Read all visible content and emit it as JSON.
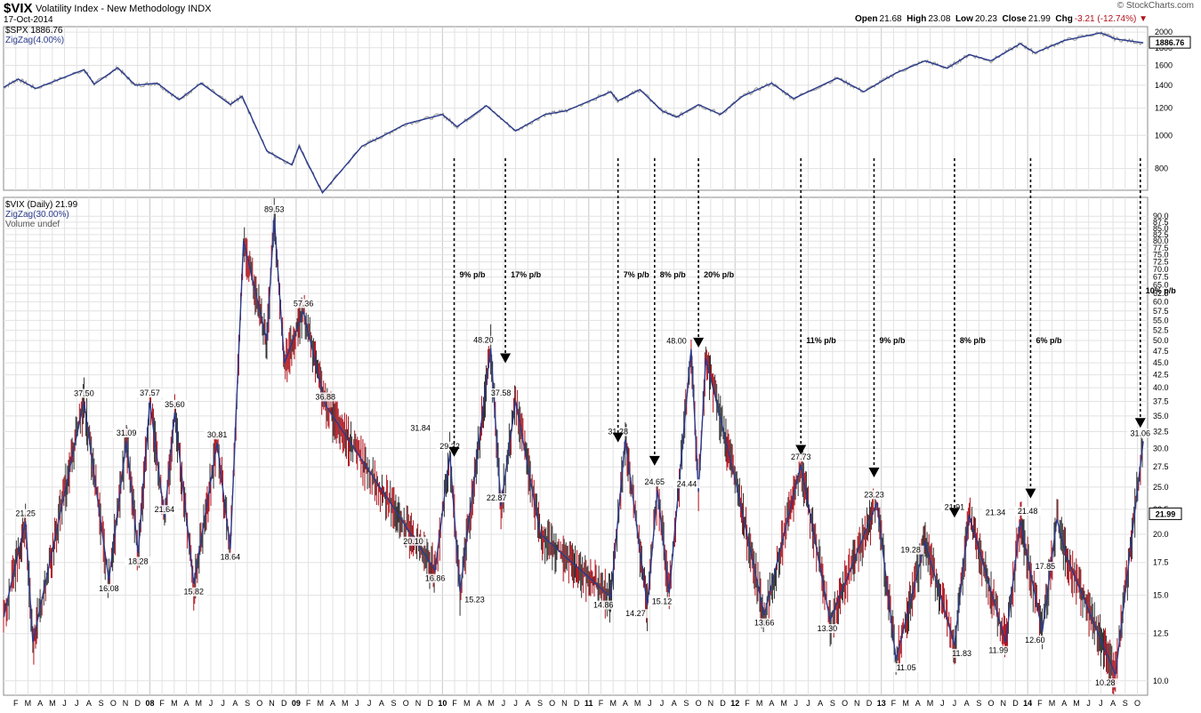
{
  "header": {
    "symbol": "$VIX",
    "name": "Volatility Index - New Methodology",
    "exchange": "INDX",
    "date": "17-Oct-2014",
    "brand": "© StockCharts.com",
    "quote": {
      "open_label": "Open",
      "open": "21.68",
      "high_label": "High",
      "high": "23.08",
      "low_label": "Low",
      "low": "20.23",
      "close_label": "Close",
      "close": "21.99",
      "chg_label": "Chg",
      "chg": "-3.21 (-12.74%)"
    }
  },
  "top_panel": {
    "legend_title": "$SPX 1886.76",
    "legend_zigzag": "ZigZag(4.00%)",
    "last_value": "1886.76"
  },
  "bottom_panel": {
    "legend_title": "$VIX (Daily) 21.99",
    "legend_zigzag": "ZigZag(30.00%)",
    "legend_volume": "Volume undef",
    "last_value": "21.99"
  },
  "colors": {
    "zigzag": "#2a3a8c",
    "price": "#333333",
    "down_bar": "#b0121b",
    "grid": "#e2e2e2"
  },
  "chart_data": [
    {
      "type": "line",
      "title": "$SPX 1886.76",
      "ylim": [
        700,
        2050
      ],
      "yscale": "log",
      "yticks": [
        800,
        1000,
        1200,
        1400,
        1600,
        1800,
        2000
      ],
      "series": [
        {
          "name": "ZigZag(4.00%)",
          "x": [
            2007.0,
            2007.1,
            2007.22,
            2007.55,
            2007.62,
            2007.78,
            2007.9,
            2008.05,
            2008.2,
            2008.35,
            2008.55,
            2008.63,
            2008.8,
            2008.97,
            2009.02,
            2009.18,
            2009.45,
            2009.6,
            2009.75,
            2010.0,
            2010.1,
            2010.3,
            2010.5,
            2010.7,
            2010.85,
            2011.15,
            2011.2,
            2011.35,
            2011.5,
            2011.6,
            2011.75,
            2011.9,
            2012.05,
            2012.25,
            2012.4,
            2012.7,
            2012.88,
            2013.1,
            2013.3,
            2013.45,
            2013.6,
            2013.75,
            2013.95,
            2014.05,
            2014.25,
            2014.5,
            2014.6,
            2014.79
          ],
          "y": [
            1380,
            1460,
            1370,
            1555,
            1410,
            1575,
            1400,
            1420,
            1270,
            1420,
            1230,
            1300,
            900,
            820,
            930,
            680,
            930,
            1000,
            1080,
            1150,
            1060,
            1220,
            1030,
            1150,
            1180,
            1340,
            1260,
            1360,
            1180,
            1130,
            1230,
            1150,
            1300,
            1420,
            1280,
            1470,
            1340,
            1520,
            1650,
            1570,
            1720,
            1650,
            1850,
            1740,
            1890,
            1990,
            1910,
            1862
          ]
        }
      ]
    },
    {
      "type": "line",
      "title": "$VIX (Daily) 21.99",
      "ylim": [
        9.5,
        92
      ],
      "yscale": "log",
      "yticks": [
        10.0,
        12.5,
        15.0,
        17.5,
        20.0,
        22.5,
        25.0,
        27.5,
        30.0,
        32.5,
        35.0,
        37.5,
        40.0,
        42.5,
        45.0,
        47.5,
        50.0,
        52.5,
        55.0,
        57.5,
        60.0,
        62.5,
        65.0,
        67.5,
        70.0,
        72.5,
        75.0,
        77.5,
        80.0,
        82.5,
        85.0,
        87.5,
        90.0
      ],
      "xlabels": [
        "F",
        "M",
        "A",
        "M",
        "J",
        "J",
        "A",
        "S",
        "O",
        "N",
        "D",
        "08",
        "F",
        "M",
        "A",
        "M",
        "J",
        "J",
        "A",
        "S",
        "O",
        "N",
        "D",
        "09",
        "F",
        "M",
        "A",
        "M",
        "J",
        "J",
        "A",
        "S",
        "O",
        "N",
        "D",
        "10",
        "F",
        "M",
        "A",
        "M",
        "J",
        "J",
        "A",
        "S",
        "O",
        "N",
        "D",
        "11",
        "F",
        "M",
        "A",
        "M",
        "J",
        "J",
        "A",
        "S",
        "O",
        "N",
        "D",
        "12",
        "F",
        "M",
        "A",
        "M",
        "J",
        "J",
        "A",
        "S",
        "O",
        "N",
        "D",
        "13",
        "F",
        "M",
        "A",
        "M",
        "J",
        "J",
        "A",
        "S",
        "O",
        "N",
        "D",
        "14",
        "F",
        "M",
        "A",
        "M",
        "J",
        "J",
        "A",
        "S",
        "O"
      ],
      "series": [
        {
          "name": "ZigZag(30.00%)",
          "x": [
            2007.0,
            2007.15,
            2007.2,
            2007.55,
            2007.72,
            2007.84,
            2007.92,
            2008.0,
            2008.1,
            2008.17,
            2008.3,
            2008.46,
            2008.55,
            2008.64,
            2008.8,
            2008.85,
            2008.92,
            2009.05,
            2009.2,
            2009.95,
            2010.05,
            2010.12,
            2010.33,
            2010.4,
            2010.5,
            2010.67,
            2011.15,
            2011.25,
            2011.4,
            2011.47,
            2011.55,
            2011.7,
            2011.75,
            2011.8,
            2012.0,
            2012.2,
            2012.45,
            2012.65,
            2012.97,
            2013.1,
            2013.3,
            2013.5,
            2013.6,
            2013.85,
            2013.95,
            2014.1,
            2014.2,
            2014.27,
            2014.6,
            2014.79
          ],
          "y": [
            13.5,
            21.25,
            12.0,
            37.5,
            16.08,
            31.09,
            18.28,
            37.57,
            21.64,
            35.6,
            15.82,
            30.81,
            18.64,
            80.0,
            50.0,
            89.53,
            45.0,
            57.36,
            36.88,
            16.86,
            29.22,
            15.23,
            48.2,
            22.87,
            37.58,
            20.0,
            14.86,
            31.28,
            14.27,
            24.65,
            15.12,
            48.0,
            24.44,
            46.0,
            26.0,
            13.66,
            27.73,
            13.3,
            23.23,
            11.05,
            19.28,
            11.83,
            21.91,
            11.99,
            21.34,
            12.6,
            21.48,
            17.85,
            10.28,
            31.06
          ]
        }
      ],
      "point_labels": [
        {
          "x": 2007.15,
          "y": 21.25,
          "text": "21.25"
        },
        {
          "x": 2007.55,
          "y": 37.5,
          "text": "37.50"
        },
        {
          "x": 2007.72,
          "y": 16.08,
          "text": "16.08"
        },
        {
          "x": 2007.84,
          "y": 31.09,
          "text": "31.09"
        },
        {
          "x": 2007.92,
          "y": 18.28,
          "text": "18.28"
        },
        {
          "x": 2008.0,
          "y": 37.57,
          "text": "37.57"
        },
        {
          "x": 2008.1,
          "y": 21.64,
          "text": "21.64"
        },
        {
          "x": 2008.17,
          "y": 35.6,
          "text": "35.60"
        },
        {
          "x": 2008.3,
          "y": 15.82,
          "text": "15.82"
        },
        {
          "x": 2008.46,
          "y": 30.81,
          "text": "30.81"
        },
        {
          "x": 2008.55,
          "y": 18.64,
          "text": "18.64"
        },
        {
          "x": 2008.85,
          "y": 89.53,
          "text": "89.53"
        },
        {
          "x": 2009.05,
          "y": 57.36,
          "text": "57.36"
        },
        {
          "x": 2009.2,
          "y": 36.88,
          "text": "36.88"
        },
        {
          "x": 2009.85,
          "y": 31.84,
          "text": "31.84"
        },
        {
          "x": 2009.8,
          "y": 20.1,
          "text": "20.10"
        },
        {
          "x": 2009.95,
          "y": 16.86,
          "text": "16.86"
        },
        {
          "x": 2010.05,
          "y": 29.22,
          "text": "29.22"
        },
        {
          "x": 2010.22,
          "y": 15.23,
          "text": "15.23"
        },
        {
          "x": 2010.28,
          "y": 48.2,
          "text": "48.20"
        },
        {
          "x": 2010.37,
          "y": 22.87,
          "text": "22.87"
        },
        {
          "x": 2010.4,
          "y": 37.58,
          "text": "37.58"
        },
        {
          "x": 2011.1,
          "y": 14.86,
          "text": "14.86"
        },
        {
          "x": 2011.2,
          "y": 31.28,
          "text": "31.28"
        },
        {
          "x": 2011.32,
          "y": 14.27,
          "text": "14.27"
        },
        {
          "x": 2011.45,
          "y": 24.65,
          "text": "24.65"
        },
        {
          "x": 2011.5,
          "y": 15.12,
          "text": "15.12"
        },
        {
          "x": 2011.6,
          "y": 48.0,
          "text": "48.00"
        },
        {
          "x": 2011.67,
          "y": 24.44,
          "text": "24.44"
        },
        {
          "x": 2012.2,
          "y": 13.66,
          "text": "13.66"
        },
        {
          "x": 2012.45,
          "y": 27.73,
          "text": "27.73"
        },
        {
          "x": 2012.63,
          "y": 13.3,
          "text": "13.30"
        },
        {
          "x": 2012.95,
          "y": 23.23,
          "text": "23.23"
        },
        {
          "x": 2013.17,
          "y": 11.05,
          "text": "11.05"
        },
        {
          "x": 2013.2,
          "y": 19.28,
          "text": "19.28"
        },
        {
          "x": 2013.55,
          "y": 11.83,
          "text": "11.83"
        },
        {
          "x": 2013.5,
          "y": 21.91,
          "text": "21.91"
        },
        {
          "x": 2013.8,
          "y": 11.99,
          "text": "11.99"
        },
        {
          "x": 2013.78,
          "y": 21.34,
          "text": "21.34"
        },
        {
          "x": 2014.05,
          "y": 12.6,
          "text": "12.60"
        },
        {
          "x": 2014.0,
          "y": 21.48,
          "text": "21.48"
        },
        {
          "x": 2014.12,
          "y": 17.85,
          "text": "17.85"
        },
        {
          "x": 2014.53,
          "y": 10.28,
          "text": "10.28"
        },
        {
          "x": 2014.77,
          "y": 31.06,
          "text": "31.06"
        }
      ],
      "annotations": [
        {
          "x": 2010.08,
          "text": "9% p/b",
          "arrow_x": 2010.08,
          "arrow_y": 29.22
        },
        {
          "x": 2010.42,
          "text": "17% p/b",
          "arrow_x": 2010.43,
          "arrow_y": 45.5
        },
        {
          "x": 2011.2,
          "text": "7% p/b",
          "arrow_x": 2011.2,
          "arrow_y": 31.28
        },
        {
          "x": 2011.45,
          "text": "8% p/b",
          "arrow_x": 2011.45,
          "arrow_y": 28.0
        },
        {
          "x": 2011.75,
          "text": "20% p/b",
          "arrow_x": 2011.75,
          "arrow_y": 49.0
        },
        {
          "x": 2012.45,
          "text": "11% p/b",
          "arrow_x": 2012.45,
          "arrow_y": 29.5
        },
        {
          "x": 2012.95,
          "text": "9% p/b",
          "arrow_x": 2012.95,
          "arrow_y": 26.5
        },
        {
          "x": 2013.5,
          "text": "8% p/b",
          "arrow_x": 2013.5,
          "arrow_y": 21.91
        },
        {
          "x": 2014.02,
          "text": "6% p/b",
          "arrow_x": 2014.02,
          "arrow_y": 24.0
        },
        {
          "x": 2014.75,
          "text": "10% p/b",
          "arrow_x": 2014.77,
          "arrow_y": 33.5
        }
      ]
    }
  ]
}
